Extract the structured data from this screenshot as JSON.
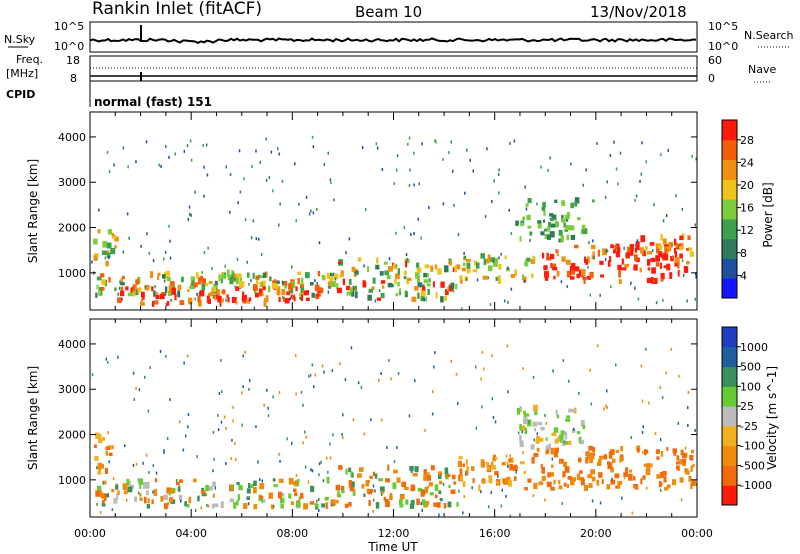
{
  "header": {
    "station": "Rankin Inlet (fitACF)",
    "beam": "Beam 10",
    "date": "13/Nov/2018"
  },
  "status_panels": {
    "nsky_label": "N.Sky",
    "nsky_ticks": [
      "10^5",
      "10^0"
    ],
    "nsearch_label": "N.Search",
    "nsearch_ticks": [
      "10^5",
      "10^0"
    ],
    "freq_label_line1": "Freq.",
    "freq_label_line2": "[MHz]",
    "freq_ticks": [
      "18",
      "8"
    ],
    "nave_label": "Nave",
    "nave_ticks": [
      "60",
      "0"
    ],
    "cpid_label": "CPID",
    "cpid_value": "normal (fast) 151"
  },
  "colors": {
    "power_scale": [
      "#1414ff",
      "#1f4fa0",
      "#2f7a5a",
      "#3da04a",
      "#7ccd3a",
      "#f0c21c",
      "#f28e10",
      "#f25e0a",
      "#ff1a0a"
    ],
    "velocity_scale": [
      "#1f3fbf",
      "#1f5fa0",
      "#3b8f5a",
      "#66cc33",
      "#bbbbbb",
      "#f0b020",
      "#f08a0a",
      "#f26a0a",
      "#ff1a0a"
    ],
    "trace": "#000000"
  },
  "chart_data": [
    {
      "type": "heatmap",
      "name": "power",
      "ylabel": "Slant Range [km]",
      "ylim": [
        180,
        4550
      ],
      "y_ticks": [
        "1000",
        "2000",
        "3000",
        "4000"
      ],
      "xlim_hours": [
        0,
        24
      ],
      "colorbar_label": "Power [dB]",
      "colorbar_ticks": [
        "4",
        "8",
        "12",
        "16",
        "20",
        "24",
        "28"
      ],
      "colorbar_range": [
        0,
        31.5
      ]
    },
    {
      "type": "heatmap",
      "name": "velocity",
      "ylabel": "Slant Range [km]",
      "ylim": [
        180,
        4550
      ],
      "y_ticks": [
        "1000",
        "2000",
        "3000",
        "4000"
      ],
      "xlim_hours": [
        0,
        24
      ],
      "colorbar_label": "Velocity [m s^-1]",
      "colorbar_ticks": [
        "1000",
        "500",
        "100",
        "25",
        "-25",
        "-100",
        "-500",
        "-1000"
      ],
      "colorbar_range": [
        -1000,
        1000
      ]
    }
  ],
  "x_axis": {
    "ticks": [
      "00:00",
      "04:00",
      "08:00",
      "12:00",
      "16:00",
      "20:00",
      "00:00"
    ],
    "label": "Time UT"
  }
}
